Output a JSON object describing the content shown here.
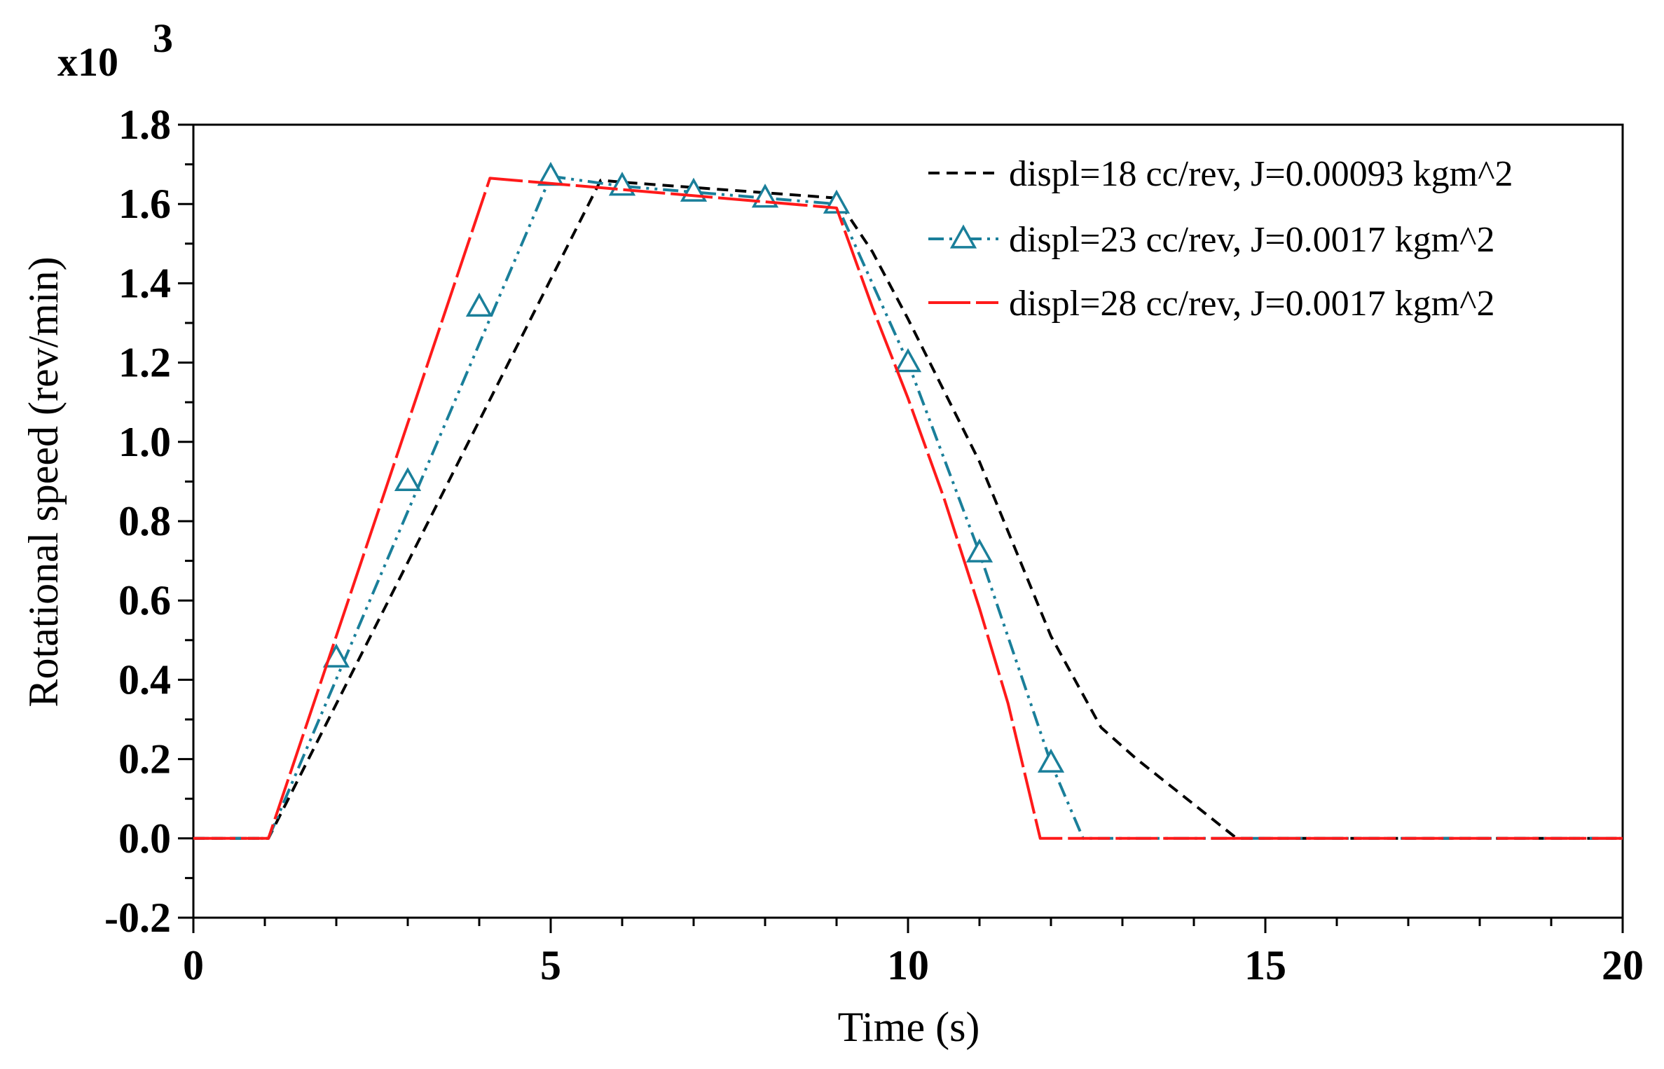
{
  "chart_data": {
    "type": "line",
    "title": "",
    "xlabel": "Time (s)",
    "ylabel": "Rotational speed (rev/min)",
    "y_multiplier": {
      "base": "x10",
      "exponent": "3"
    },
    "xlim": [
      0,
      20
    ],
    "ylim": [
      -0.2,
      1.8
    ],
    "x_ticks": [
      0,
      5,
      10,
      15,
      20
    ],
    "x_tick_labels": [
      "0",
      "5",
      "10",
      "15",
      "20"
    ],
    "y_ticks": [
      -0.2,
      0.0,
      0.2,
      0.4,
      0.6,
      0.8,
      1.0,
      1.2,
      1.4,
      1.6,
      1.8
    ],
    "y_tick_labels": [
      "-0.2",
      "0.0",
      "0.2",
      "0.4",
      "0.6",
      "0.8",
      "1.0",
      "1.2",
      "1.4",
      "1.6",
      "1.8"
    ],
    "grid": false,
    "legend_position": "top-right",
    "series": [
      {
        "name": "displ=18 cc/rev, J=0.00093 kgm^2",
        "color": "#000000",
        "style": "dashed",
        "marker": "none",
        "x": [
          0,
          1.05,
          5.7,
          6,
          9,
          9.5,
          10,
          11,
          12,
          12.7,
          13.2,
          14.6,
          20
        ],
        "y": [
          0,
          0,
          1.66,
          1.655,
          1.615,
          1.48,
          1.31,
          0.95,
          0.51,
          0.28,
          0.2,
          0,
          0
        ]
      },
      {
        "name": "displ=23 cc/rev, J=0.0017 kgm^2",
        "color": "#1a7f9a",
        "style": "dash-dot-dot",
        "marker": "triangle",
        "x": [
          0,
          1.05,
          5,
          6,
          7,
          8,
          9,
          10,
          11,
          12,
          12.45,
          20
        ],
        "y": [
          0,
          0,
          1.67,
          1.645,
          1.63,
          1.615,
          1.6,
          1.2,
          0.72,
          0.19,
          0,
          0
        ],
        "marker_x": [
          2,
          3,
          4,
          5,
          6,
          7,
          8,
          9,
          10,
          11,
          12
        ],
        "marker_y": [
          0.455,
          0.9,
          1.34,
          1.67,
          1.645,
          1.63,
          1.615,
          1.6,
          1.2,
          0.72,
          0.19
        ]
      },
      {
        "name": "displ=28 cc/rev, J=0.0017 kgm^2",
        "color": "#ff1a1a",
        "style": "long-dash",
        "marker": "none",
        "x": [
          0,
          1.05,
          4.15,
          9,
          9.5,
          10,
          10.5,
          11,
          11.4,
          11.85,
          20
        ],
        "y": [
          0,
          0,
          1.665,
          1.59,
          1.34,
          1.11,
          0.86,
          0.58,
          0.34,
          0,
          0
        ]
      }
    ]
  }
}
